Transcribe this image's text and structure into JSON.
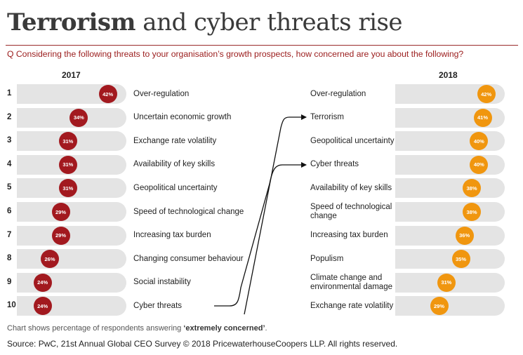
{
  "title_bold": "Terrorism",
  "title_rest": " and cyber threats rise",
  "question": "Q Considering the following threats to your organisation’s growth prospects, how concerned are you about the following?",
  "colors": {
    "y2017": "#a2191f",
    "y2018": "#f0960f",
    "track": "#e4e4e4"
  },
  "chart_data": {
    "type": "bar",
    "title": "Terrorism and cyber threats rise",
    "series": [
      {
        "name": "2017",
        "items": [
          {
            "rank": "1",
            "label": "Over-regulation",
            "value": 42
          },
          {
            "rank": "2",
            "label": "Uncertain economic growth",
            "value": 34
          },
          {
            "rank": "3",
            "label": "Exchange rate volatility",
            "value": 31
          },
          {
            "rank": "4",
            "label": "Availability of key skills",
            "value": 31
          },
          {
            "rank": "5",
            "label": "Geopolitical uncertainty",
            "value": 31
          },
          {
            "rank": "6",
            "label": "Speed of technological change",
            "value": 29
          },
          {
            "rank": "7",
            "label": "Increasing tax burden",
            "value": 29
          },
          {
            "rank": "8",
            "label": "Changing consumer behaviour",
            "value": 26
          },
          {
            "rank": "9",
            "label": "Social instability",
            "value": 24
          },
          {
            "rank": "10",
            "label": "Cyber threats",
            "value": 24
          }
        ]
      },
      {
        "name": "2018",
        "items": [
          {
            "label": "Over-regulation",
            "value": 42
          },
          {
            "label": "Terrorism",
            "value": 41
          },
          {
            "label": "Geopolitical uncertainty",
            "value": 40
          },
          {
            "label": "Cyber threats",
            "value": 40
          },
          {
            "label": "Availability of key skills",
            "value": 38
          },
          {
            "label": "Speed of technological change",
            "value": 38
          },
          {
            "label": "Increasing tax burden",
            "value": 36
          },
          {
            "label": "Populism",
            "value": 35
          },
          {
            "label": "Climate change and environmental damage",
            "value": 31
          },
          {
            "label": "Exchange rate volatility",
            "value": 29
          }
        ]
      }
    ],
    "value_suffix": "%",
    "xlim": [
      0,
      44
    ]
  },
  "footnote_prefix": "Chart shows percentage of respondents answering ",
  "footnote_emphasis": "‘extremely concerned’",
  "footnote_suffix": ".",
  "source": "Source: PwC, 21st Annual Global CEO Survey  © 2018 PricewaterhouseCoopers LLP. All rights reserved."
}
